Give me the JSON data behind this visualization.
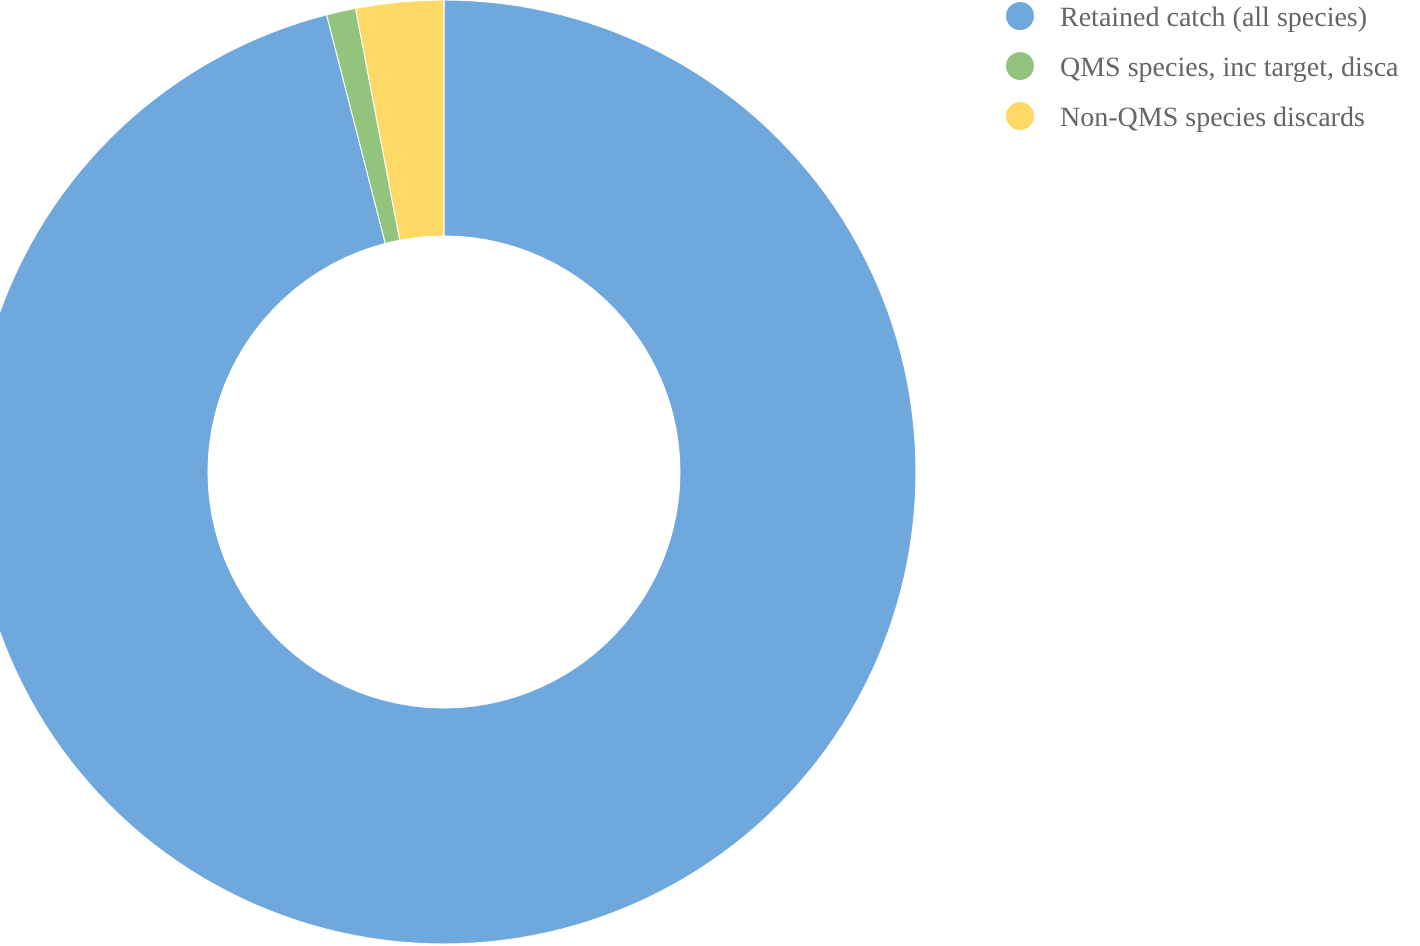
{
  "chart_data": {
    "type": "donut",
    "categories": [
      "Retained catch (all species)",
      "QMS species, inc target, disca",
      "Non-QMS species discards"
    ],
    "values": [
      96,
      1,
      3
    ],
    "colors": [
      "#6fa8dc",
      "#93c47d",
      "#ffd966"
    ],
    "legend": "top right"
  }
}
